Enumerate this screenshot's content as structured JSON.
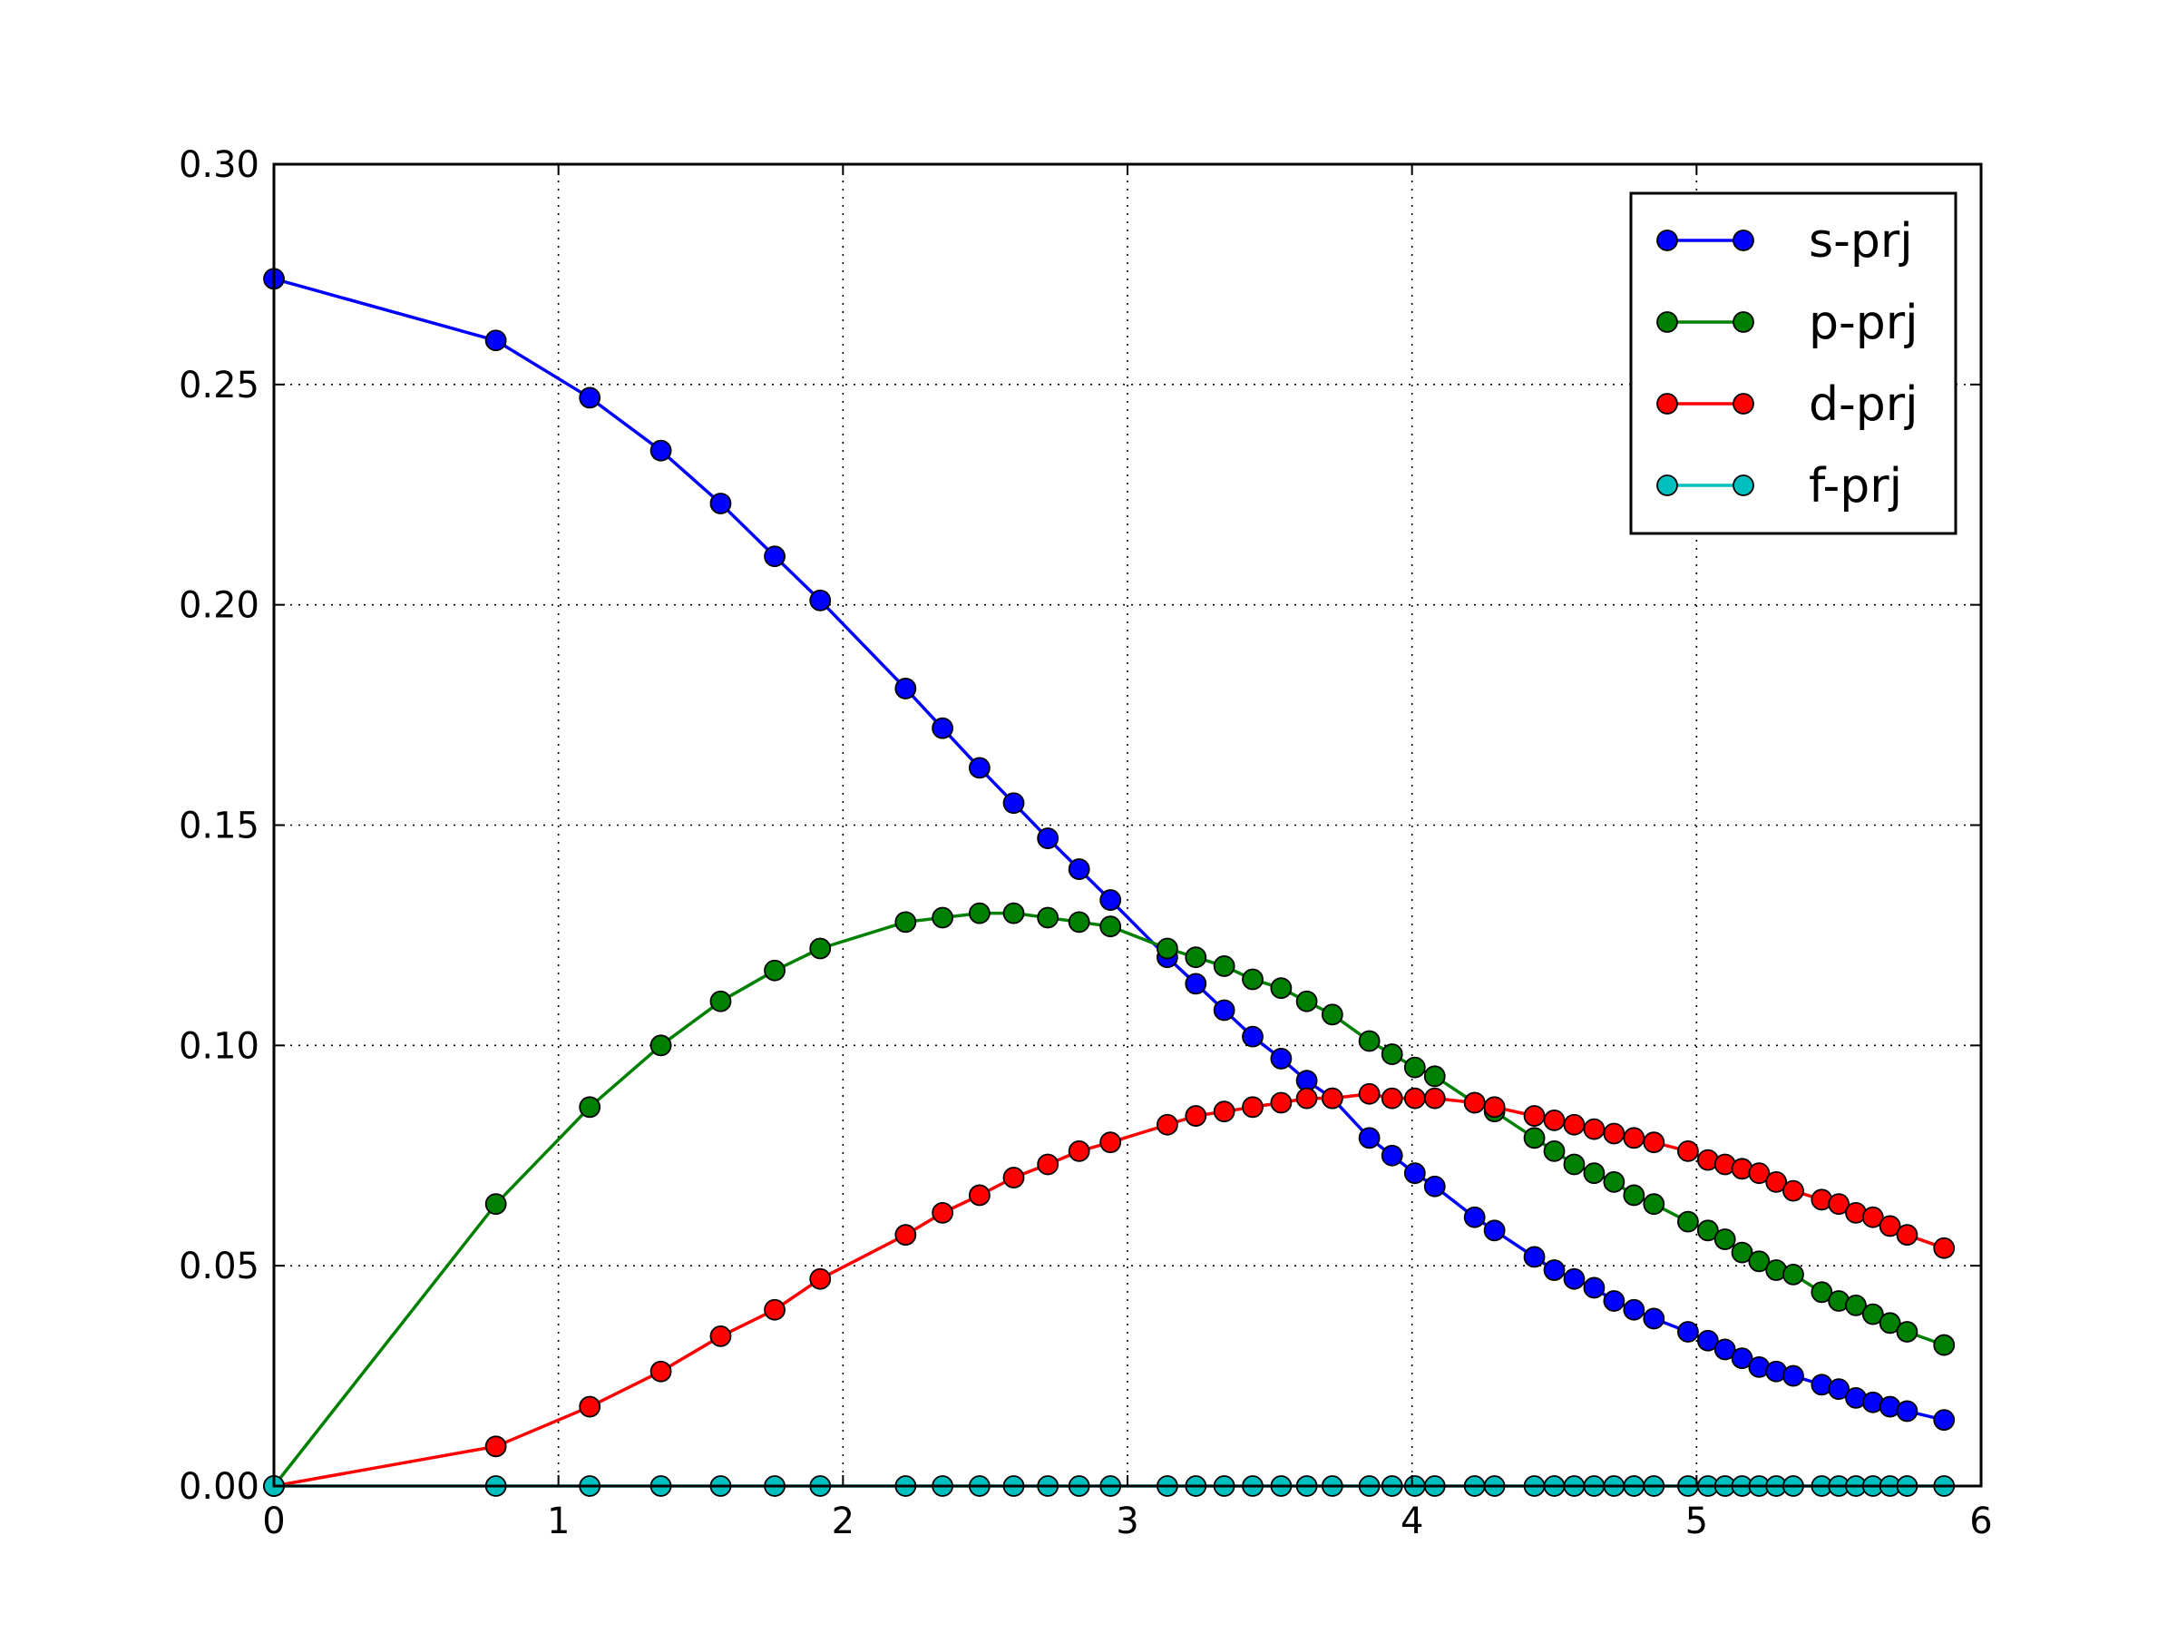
{
  "chart_data": {
    "type": "line",
    "title": "",
    "xlabel": "",
    "ylabel": "",
    "xlim": [
      0,
      6
    ],
    "ylim": [
      0,
      0.3
    ],
    "xticks": [
      "0",
      "1",
      "2",
      "3",
      "4",
      "5",
      "6"
    ],
    "yticks": [
      "0.00",
      "0.05",
      "0.10",
      "0.15",
      "0.20",
      "0.25",
      "0.30"
    ],
    "grid": true,
    "legend_position": "top-right",
    "x": [
      0,
      0.78,
      1.11,
      1.36,
      1.57,
      1.76,
      1.92,
      2.22,
      2.35,
      2.48,
      2.6,
      2.72,
      2.83,
      2.94,
      3.14,
      3.24,
      3.34,
      3.44,
      3.54,
      3.63,
      3.72,
      3.85,
      3.93,
      4.01,
      4.08,
      4.22,
      4.29,
      4.43,
      4.5,
      4.57,
      4.64,
      4.71,
      4.78,
      4.85,
      4.97,
      5.04,
      5.1,
      5.16,
      5.22,
      5.28,
      5.34,
      5.44,
      5.5,
      5.56,
      5.62,
      5.68,
      5.74,
      5.87
    ],
    "series": [
      {
        "name": "s-prj",
        "color": "#0000ff",
        "values": [
          0.274,
          0.26,
          0.247,
          0.235,
          0.223,
          0.211,
          0.201,
          0.181,
          0.172,
          0.163,
          0.155,
          0.147,
          0.14,
          0.133,
          0.12,
          0.114,
          0.108,
          0.102,
          0.097,
          0.092,
          0.088,
          0.079,
          0.075,
          0.071,
          0.068,
          0.061,
          0.058,
          0.052,
          0.049,
          0.047,
          0.045,
          0.042,
          0.04,
          0.038,
          0.035,
          0.033,
          0.031,
          0.029,
          0.027,
          0.026,
          0.025,
          0.023,
          0.022,
          0.02,
          0.019,
          0.018,
          0.017,
          0.015
        ]
      },
      {
        "name": "p-prj",
        "color": "#008000",
        "values": [
          0.0,
          0.064,
          0.086,
          0.1,
          0.11,
          0.117,
          0.122,
          0.128,
          0.129,
          0.13,
          0.13,
          0.129,
          0.128,
          0.127,
          0.122,
          0.12,
          0.118,
          0.115,
          0.113,
          0.11,
          0.107,
          0.101,
          0.098,
          0.095,
          0.093,
          0.087,
          0.085,
          0.079,
          0.076,
          0.073,
          0.071,
          0.069,
          0.066,
          0.064,
          0.06,
          0.058,
          0.056,
          0.053,
          0.051,
          0.049,
          0.048,
          0.044,
          0.042,
          0.041,
          0.039,
          0.037,
          0.035,
          0.032
        ]
      },
      {
        "name": "d-prj",
        "color": "#ff0000",
        "values": [
          0.0,
          0.009,
          0.018,
          0.026,
          0.034,
          0.04,
          0.047,
          0.057,
          0.062,
          0.066,
          0.07,
          0.073,
          0.076,
          0.078,
          0.082,
          0.084,
          0.085,
          0.086,
          0.087,
          0.088,
          0.088,
          0.089,
          0.088,
          0.088,
          0.088,
          0.087,
          0.086,
          0.084,
          0.083,
          0.082,
          0.081,
          0.08,
          0.079,
          0.078,
          0.076,
          0.074,
          0.073,
          0.072,
          0.071,
          0.069,
          0.067,
          0.065,
          0.064,
          0.062,
          0.061,
          0.059,
          0.057,
          0.054
        ]
      },
      {
        "name": "f-prj",
        "color": "#00bfbf",
        "values": [
          0.0,
          0.0,
          0.0,
          0.0,
          0.0,
          0.0,
          0.0,
          0.0,
          0.0,
          0.0,
          0.0,
          0.0,
          0.0,
          0.0,
          0.0,
          0.0,
          0.0,
          0.0,
          0.0,
          0.0,
          0.0,
          0.0,
          0.0,
          0.0,
          0.0,
          0.0,
          0.0,
          0.0,
          0.0,
          0.0,
          0.0,
          0.0,
          0.0,
          0.0,
          0.0,
          0.0,
          0.0,
          0.0,
          0.0,
          0.0,
          0.0,
          0.0,
          0.0,
          0.0,
          0.0,
          0.0,
          0.0,
          0.0
        ]
      }
    ]
  }
}
